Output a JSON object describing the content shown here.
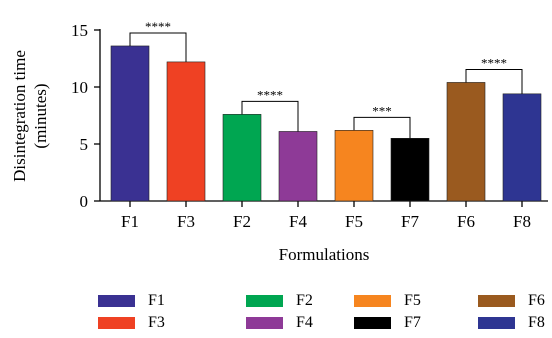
{
  "chart_data": {
    "type": "bar",
    "categories": [
      "F1",
      "F3",
      "F2",
      "F4",
      "F5",
      "F7",
      "F6",
      "F8"
    ],
    "values": [
      13.6,
      12.2,
      7.6,
      6.1,
      6.2,
      5.5,
      10.4,
      9.4
    ],
    "colors": [
      "#3a3192",
      "#ef4123",
      "#00a651",
      "#8e3a97",
      "#f6851f",
      "#000000",
      "#9a5a1f",
      "#2e3592"
    ],
    "title": "",
    "xlabel": "Formulations",
    "ylabel": "Disintegration time (minutes)",
    "ylabel_lines": [
      "Disintegration time",
      "(minutes)"
    ],
    "ylim": [
      0,
      15
    ],
    "yticks": [
      0,
      5,
      10,
      15
    ],
    "grid": false,
    "significance": [
      {
        "pair": [
          "F1",
          "F3"
        ],
        "label": "****"
      },
      {
        "pair": [
          "F2",
          "F4"
        ],
        "label": "****"
      },
      {
        "pair": [
          "F5",
          "F7"
        ],
        "label": "***"
      },
      {
        "pair": [
          "F6",
          "F8"
        ],
        "label": "****"
      }
    ],
    "legend": {
      "placement": "bottom",
      "entries": [
        {
          "label": "F1",
          "color": "#3a3192"
        },
        {
          "label": "F2",
          "color": "#00a651"
        },
        {
          "label": "F5",
          "color": "#f6851f"
        },
        {
          "label": "F6",
          "color": "#9a5a1f"
        },
        {
          "label": "F3",
          "color": "#ef4123"
        },
        {
          "label": "F4",
          "color": "#8e3a97"
        },
        {
          "label": "F7",
          "color": "#000000"
        },
        {
          "label": "F8",
          "color": "#2e3592"
        }
      ]
    }
  }
}
